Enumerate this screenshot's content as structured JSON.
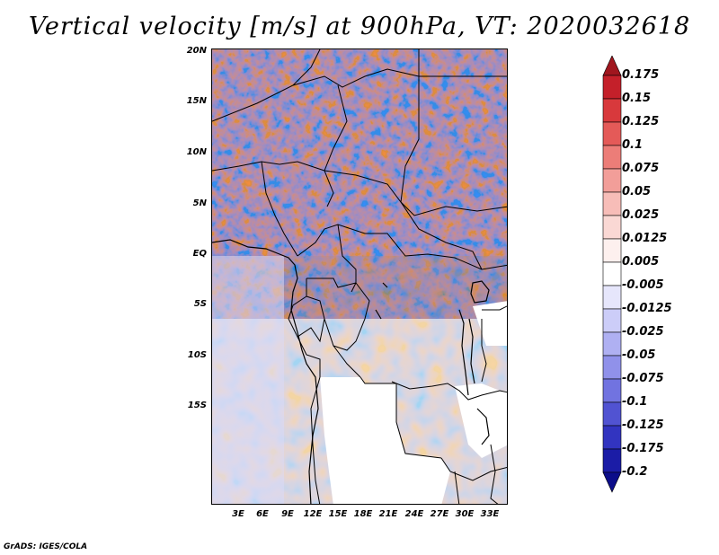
{
  "title": "Vertical velocity [m/s] at 900hPa, VT: 2020032618",
  "map": {
    "region": "Central Africa",
    "variable": "Vertical velocity",
    "units": "m/s",
    "level": "900hPa",
    "valid_time": "2020032618",
    "lat_labels": [
      "20N",
      "15N",
      "10N",
      "5N",
      "EQ",
      "5S",
      "10S",
      "15S"
    ],
    "lon_labels": [
      "3E",
      "6E",
      "9E",
      "12E",
      "15E",
      "18E",
      "21E",
      "24E",
      "27E",
      "30E",
      "33E"
    ]
  },
  "colorbar": {
    "labels": [
      "0.175",
      "0.15",
      "0.125",
      "0.1",
      "0.075",
      "0.05",
      "0.025",
      "0.0125",
      "0.005",
      "-0.005",
      "-0.0125",
      "-0.025",
      "-0.05",
      "-0.075",
      "-0.1",
      "-0.125",
      "-0.175",
      "-0.2"
    ],
    "colors": [
      "#a0161e",
      "#c4202a",
      "#d8393c",
      "#e45a58",
      "#ec7d78",
      "#f29e99",
      "#f7bdb8",
      "#fad8d4",
      "#fdf0ee",
      "#ffffff",
      "#e6e6fb",
      "#cccdf8",
      "#afb0f2",
      "#9091ea",
      "#7173e0",
      "#5153d2",
      "#3234c0",
      "#1b1ca6",
      "#0c0d8a"
    ]
  },
  "credit": "GrADS: IGES/COLA"
}
